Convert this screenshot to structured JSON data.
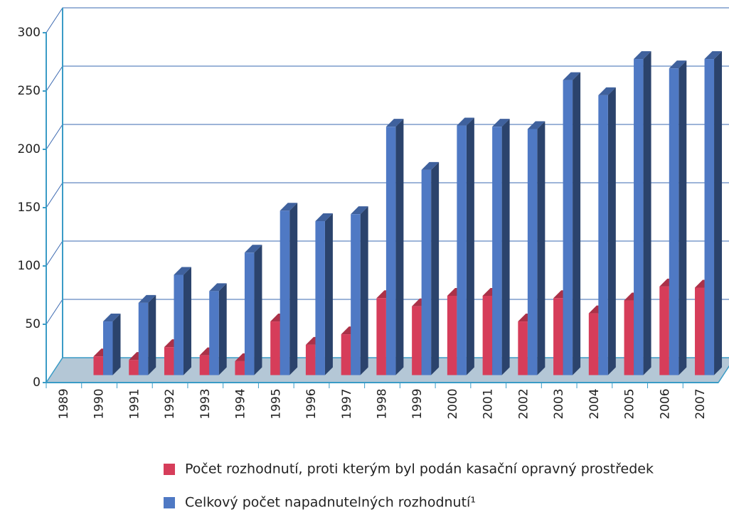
{
  "chart_data": {
    "type": "bar3d",
    "categories": [
      "1989",
      "1990",
      "1991",
      "1992",
      "1993",
      "1994",
      "1995",
      "1996",
      "1997",
      "1998",
      "1999",
      "2000",
      "2001",
      "2002",
      "2003",
      "2004",
      "2005",
      "2006",
      "2007"
    ],
    "series": [
      {
        "name": "Počet rozhodnutí, proti kterým byl podán kasační opravný prostředek",
        "color": "#d63d5a",
        "values": [
          null,
          16,
          13,
          24,
          17,
          12,
          46,
          26,
          35,
          66,
          59,
          68,
          68,
          46,
          66,
          53,
          64,
          76,
          75
        ]
      },
      {
        "name": "Celkový počet napadnutelných rozhodnutí¹",
        "color": "#4f79c4",
        "values": [
          null,
          46,
          62,
          86,
          72,
          105,
          141,
          132,
          138,
          213,
          176,
          214,
          213,
          211,
          253,
          240,
          271,
          263,
          271
        ]
      }
    ],
    "ylim": [
      0,
      300
    ],
    "yticks": [
      0,
      50,
      100,
      150,
      200,
      250,
      300
    ],
    "grid": true
  }
}
